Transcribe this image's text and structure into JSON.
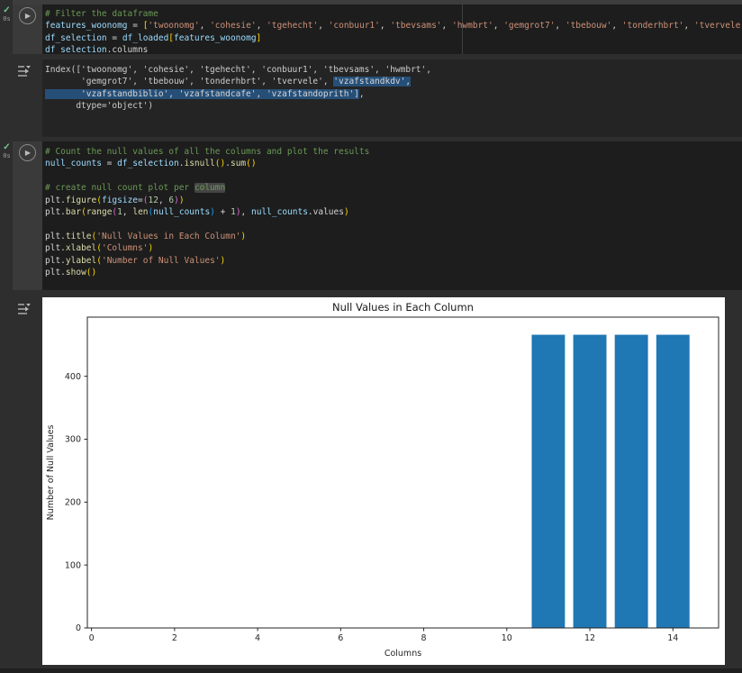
{
  "colors": {
    "bar_blue": "#1f77b4",
    "selection_blue": "#264f78",
    "success_green": "#73c991",
    "comment_green": "#6a9955",
    "string_orange": "#ce9178"
  },
  "icons": {
    "run_play": "▶",
    "success_check": "✓",
    "output_menu": "output-options-arrow-with-caret"
  },
  "cells": [
    {
      "kind": "code",
      "exec": {
        "check": "✓",
        "time": "0s"
      },
      "lines": [
        [
          [
            "# Filter the dataframe",
            "c"
          ]
        ],
        [
          [
            "features_woonomg",
            "v"
          ],
          [
            " = ",
            "p"
          ],
          [
            "[",
            "b1"
          ],
          [
            "'twoonomg'",
            "s"
          ],
          [
            ", ",
            "p"
          ],
          [
            "'cohesie'",
            "s"
          ],
          [
            ", ",
            "p"
          ],
          [
            "'tgehecht'",
            "s"
          ],
          [
            ", ",
            "p"
          ],
          [
            "'conbuur1'",
            "s"
          ],
          [
            ", ",
            "p"
          ],
          [
            "'tbevsams'",
            "s"
          ],
          [
            ", ",
            "p"
          ],
          [
            "'hwmbrt'",
            "s"
          ],
          [
            ", ",
            "p"
          ],
          [
            "'gemgrot7'",
            "s"
          ],
          [
            ", ",
            "p"
          ],
          [
            "'tbebouw'",
            "s"
          ],
          [
            ", ",
            "p"
          ],
          [
            "'tonderhbrt'",
            "s"
          ],
          [
            ", ",
            "p"
          ],
          [
            "'tvervele'",
            "s"
          ],
          [
            ",",
            "p"
          ]
        ],
        [
          [
            "df_selection",
            "v"
          ],
          [
            " = ",
            "p"
          ],
          [
            "df_loaded",
            "v"
          ],
          [
            "[",
            "b1"
          ],
          [
            "features_woonomg",
            "v"
          ],
          [
            "]",
            "b1"
          ]
        ],
        [
          [
            "df_selection",
            "v"
          ],
          [
            ".columns",
            "p"
          ]
        ]
      ]
    },
    {
      "kind": "output-text",
      "lines": [
        [
          [
            "Index(['twoonomg', 'cohesie', 'tgehecht', 'conbuur1', 'tbevsams', 'hwmbrt',",
            "out"
          ]
        ],
        [
          [
            "       'gemgrot7', 'tbebouw', 'tonderhbrt', 'tvervele', ",
            "out"
          ],
          [
            "'vzafstandkdv',",
            "sel"
          ]
        ],
        [
          [
            "       'vzafstandbiblio', 'vzafstandcafe', 'vzafstandoprith']",
            "sel"
          ],
          [
            ",",
            "out"
          ]
        ],
        [
          [
            "      dtype='object')",
            "out"
          ]
        ]
      ]
    },
    {
      "kind": "code",
      "exec": {
        "check": "✓",
        "time": "0s"
      },
      "lines": [
        [
          [
            "# Count the null values of all the columns and plot the results",
            "c"
          ]
        ],
        [
          [
            "null_counts",
            "v"
          ],
          [
            " = ",
            "p"
          ],
          [
            "df_selection",
            "v"
          ],
          [
            ".",
            "p"
          ],
          [
            "isnull",
            "f"
          ],
          [
            "()",
            "b1"
          ],
          [
            ".",
            "p"
          ],
          [
            "sum",
            "f"
          ],
          [
            "()",
            "b1"
          ]
        ],
        [],
        [
          [
            "# create null count plot per ",
            "c"
          ],
          [
            "column",
            "chl"
          ]
        ],
        [
          [
            "plt",
            "p"
          ],
          [
            ".",
            "p"
          ],
          [
            "figure",
            "f"
          ],
          [
            "(",
            "b1"
          ],
          [
            "figsize",
            "v"
          ],
          [
            "=",
            "p"
          ],
          [
            "(",
            "b2"
          ],
          [
            "12",
            "n"
          ],
          [
            ", ",
            "p"
          ],
          [
            "6",
            "n"
          ],
          [
            ")",
            "b2"
          ],
          [
            ")",
            "b1"
          ]
        ],
        [
          [
            "plt",
            "p"
          ],
          [
            ".",
            "p"
          ],
          [
            "bar",
            "f"
          ],
          [
            "(",
            "b1"
          ],
          [
            "range",
            "f"
          ],
          [
            "(",
            "b2"
          ],
          [
            "1",
            "n"
          ],
          [
            ", ",
            "p"
          ],
          [
            "len",
            "f"
          ],
          [
            "(",
            "b3"
          ],
          [
            "null_counts",
            "v"
          ],
          [
            ")",
            "b3"
          ],
          [
            " + ",
            "p"
          ],
          [
            "1",
            "n"
          ],
          [
            ")",
            "b2"
          ],
          [
            ", ",
            "p"
          ],
          [
            "null_counts",
            "v"
          ],
          [
            ".values",
            "p"
          ],
          [
            ")",
            "b1"
          ]
        ],
        [],
        [
          [
            "plt",
            "p"
          ],
          [
            ".",
            "p"
          ],
          [
            "title",
            "f"
          ],
          [
            "(",
            "b1"
          ],
          [
            "'Null Values in Each Column'",
            "s"
          ],
          [
            ")",
            "b1"
          ]
        ],
        [
          [
            "plt",
            "p"
          ],
          [
            ".",
            "p"
          ],
          [
            "xlabel",
            "f"
          ],
          [
            "(",
            "b1"
          ],
          [
            "'Columns'",
            "s"
          ],
          [
            ")",
            "b1"
          ]
        ],
        [
          [
            "plt",
            "p"
          ],
          [
            ".",
            "p"
          ],
          [
            "ylabel",
            "f"
          ],
          [
            "(",
            "b1"
          ],
          [
            "'Number of Null Values'",
            "s"
          ],
          [
            ")",
            "b1"
          ]
        ],
        [
          [
            "plt",
            "p"
          ],
          [
            ".",
            "p"
          ],
          [
            "show",
            "f"
          ],
          [
            "()",
            "b1"
          ]
        ]
      ]
    },
    {
      "kind": "output-plot"
    }
  ],
  "chart_data": {
    "type": "bar",
    "title": "Null Values in Each Column",
    "xlabel": "Columns",
    "ylabel": "Number of Null Values",
    "x": [
      1,
      2,
      3,
      4,
      5,
      6,
      7,
      8,
      9,
      10,
      11,
      12,
      13,
      14
    ],
    "values": [
      0,
      0,
      0,
      0,
      0,
      0,
      0,
      0,
      0,
      0,
      466,
      466,
      466,
      466
    ],
    "bar_width": 0.8,
    "bar_color": "#1f77b4",
    "xticks": [
      0,
      2,
      4,
      6,
      8,
      10,
      12,
      14
    ],
    "yticks": [
      0,
      100,
      200,
      300,
      400
    ],
    "xlim": [
      -0.1,
      15.1
    ],
    "ylim": [
      0,
      494
    ],
    "grid": false,
    "legend": null,
    "background": "#ffffff"
  }
}
